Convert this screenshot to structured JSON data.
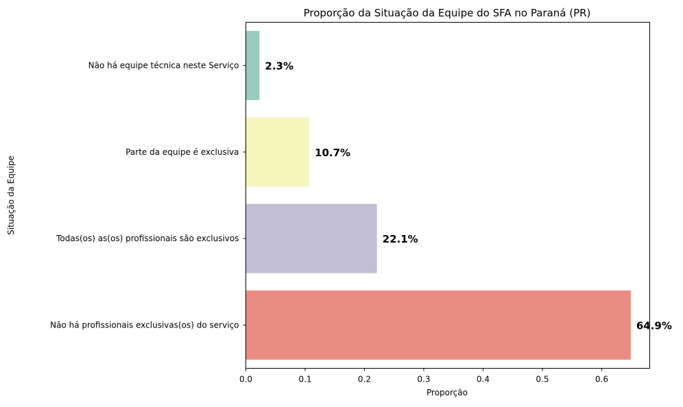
{
  "chart_data": {
    "type": "bar",
    "orientation": "horizontal",
    "title": "Proporção da Situação da Equipe do SFA no Paraná (PR)",
    "xlabel": "Proporção",
    "ylabel": "Situação da Equipe",
    "categories": [
      "Não há equipe técnica neste Serviço",
      "Parte da equipe é exclusiva",
      "Todas(os) as(os) profissionais são exclusivos",
      "Não há profissionais exclusivas(os) do serviço"
    ],
    "values": [
      0.023,
      0.107,
      0.221,
      0.649
    ],
    "data_labels": [
      "2.3%",
      "10.7%",
      "22.1%",
      "64.9%"
    ],
    "colors": [
      "#99cbbf",
      "#f6f6bd",
      "#c1bed6",
      "#e98d82"
    ],
    "xlim": [
      0,
      0.681
    ],
    "xticks": [
      0.0,
      0.1,
      0.2,
      0.3,
      0.4,
      0.5,
      0.6
    ],
    "xtick_labels": [
      "0.0",
      "0.1",
      "0.2",
      "0.3",
      "0.4",
      "0.5",
      "0.6"
    ],
    "grid": false,
    "legend": "none"
  }
}
